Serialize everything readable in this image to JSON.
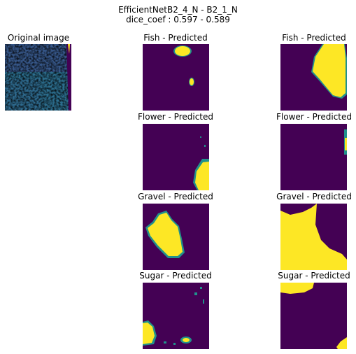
{
  "figure": {
    "suptitle_line1": "EfficientNetB2_4_N - B2_1_N",
    "suptitle_line2": "dice_coef : 0.597 - 0.589"
  },
  "colors": {
    "mask_background": "#440154",
    "mask_foreground": "#fde725",
    "mask_edge": "#21918c"
  },
  "panels": {
    "original": {
      "title": "Original image"
    },
    "fish_a": {
      "title": "Fish - Predicted"
    },
    "fish_b": {
      "title": "Fish - Predicted"
    },
    "flower_a": {
      "title": "Flower - Predicted"
    },
    "flower_b": {
      "title": "Flower - Predicted"
    },
    "gravel_a": {
      "title": "Gravel - Predicted"
    },
    "gravel_b": {
      "title": "Gravel - Predicted"
    },
    "sugar_a": {
      "title": "Sugar - Predicted"
    },
    "sugar_b": {
      "title": "Sugar - Predicted"
    }
  }
}
